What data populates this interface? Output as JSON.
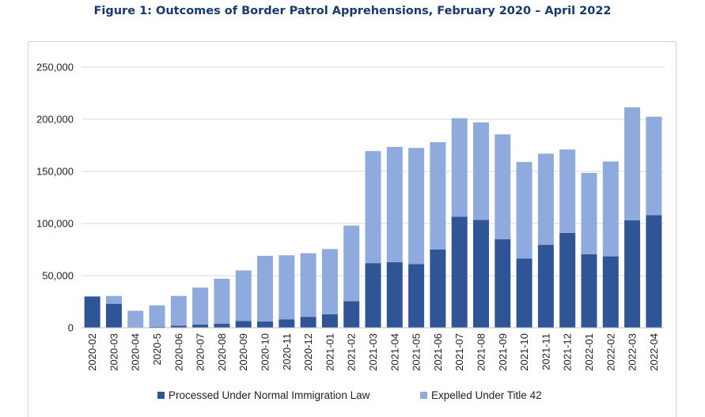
{
  "chart_data": {
    "type": "bar",
    "stacked": true,
    "title": "Figure 1: Outcomes of Border Patrol Apprehensions, February 2020 – April 2022",
    "categories": [
      "2020-02",
      "2020-03",
      "2020-04",
      "2020-5",
      "2020-06",
      "2020-07",
      "2020-08",
      "2020-09",
      "2020-10",
      "2020-11",
      "2020-12",
      "2021-01",
      "2021-02",
      "2021-03",
      "2021-04",
      "2021-05",
      "2021-06",
      "2021-07",
      "2021-08",
      "2021-09",
      "2021-10",
      "2021-11",
      "2021-12",
      "2022-01",
      "2022-02",
      "2022-03",
      "2022-04"
    ],
    "series": [
      {
        "name": "Processed Under Normal Immigration Law",
        "color": "#2f5597",
        "values": [
          30000,
          23000,
          300,
          1000,
          2000,
          3000,
          4000,
          6500,
          6000,
          8000,
          10500,
          13000,
          25500,
          62000,
          63000,
          61000,
          75000,
          106500,
          103500,
          85000,
          66500,
          79500,
          91000,
          70500,
          68500,
          103000,
          108000
        ]
      },
      {
        "name": "Expelled Under Title 42",
        "color": "#8faadc",
        "values": [
          0,
          7500,
          16000,
          20500,
          28500,
          35500,
          43000,
          48500,
          63000,
          61500,
          61000,
          62500,
          72500,
          107500,
          110500,
          111500,
          103000,
          94500,
          93500,
          100500,
          92500,
          87500,
          80000,
          78000,
          91000,
          108500,
          94500
        ]
      }
    ],
    "y_ticks": [
      "0",
      "50,000",
      "100,000",
      "150,000",
      "200,000",
      "250,000"
    ],
    "ylim": [
      0,
      250000
    ],
    "grid": true,
    "legend_position": "bottom"
  }
}
